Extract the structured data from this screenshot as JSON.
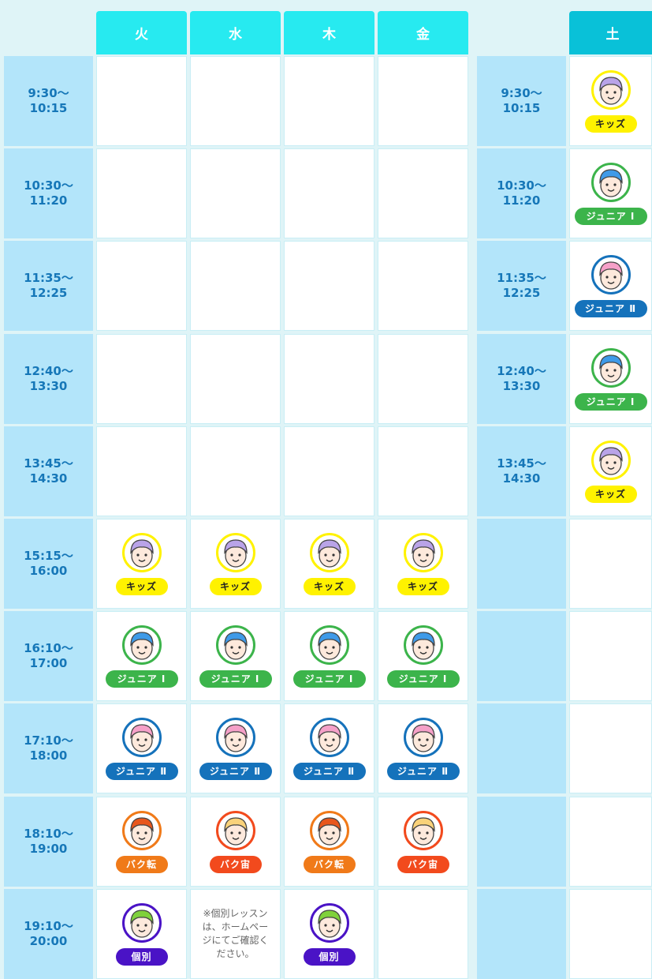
{
  "days": [
    "火",
    "水",
    "木",
    "金"
  ],
  "saturday": "土",
  "times": [
    "9:30〜\n10:15",
    "10:30〜\n11:20",
    "11:35〜\n12:25",
    "12:40〜\n13:30",
    "13:45〜\n14:30",
    "15:15〜\n16:00",
    "16:10〜\n17:00",
    "17:10〜\n18:00",
    "18:10〜\n19:00",
    "19:10〜\n20:00"
  ],
  "classes": {
    "kids": {
      "label": "キッズ",
      "ring": "#fff200",
      "hair": "#b9a3e8"
    },
    "j1": {
      "label": "ジュニア Ⅰ",
      "ring": "#3cb44b",
      "hair": "#3f9ae8"
    },
    "j2": {
      "label": "ジュニア Ⅱ",
      "ring": "#1572bb",
      "hair": "#f5a0c8"
    },
    "back": {
      "label": "バク転",
      "ring": "#f07a19",
      "hair": "#e8561c"
    },
    "back2": {
      "label": "バク宙",
      "ring": "#f24a1d",
      "hair": "#f9d27a"
    },
    "ind": {
      "label": "個別",
      "ring": "#4a13c6",
      "hair": "#7fd13b"
    }
  },
  "weekday_rows": [
    [
      null,
      null,
      null,
      null
    ],
    [
      null,
      null,
      null,
      null
    ],
    [
      null,
      null,
      null,
      null
    ],
    [
      null,
      null,
      null,
      null
    ],
    [
      null,
      null,
      null,
      null
    ],
    [
      "kids",
      "kids",
      "kids",
      "kids"
    ],
    [
      "j1",
      "j1",
      "j1",
      "j1"
    ],
    [
      "j2",
      "j2",
      "j2",
      "j2"
    ],
    [
      "back",
      "back2",
      "back",
      "back2"
    ],
    [
      "ind",
      "note",
      "ind",
      null
    ]
  ],
  "saturday_rows": [
    "kids",
    "j1",
    "j2",
    "j1",
    "kids",
    null,
    null,
    null,
    null,
    null
  ],
  "note": "※個別レッスンは、ホームページにてご確認ください。"
}
